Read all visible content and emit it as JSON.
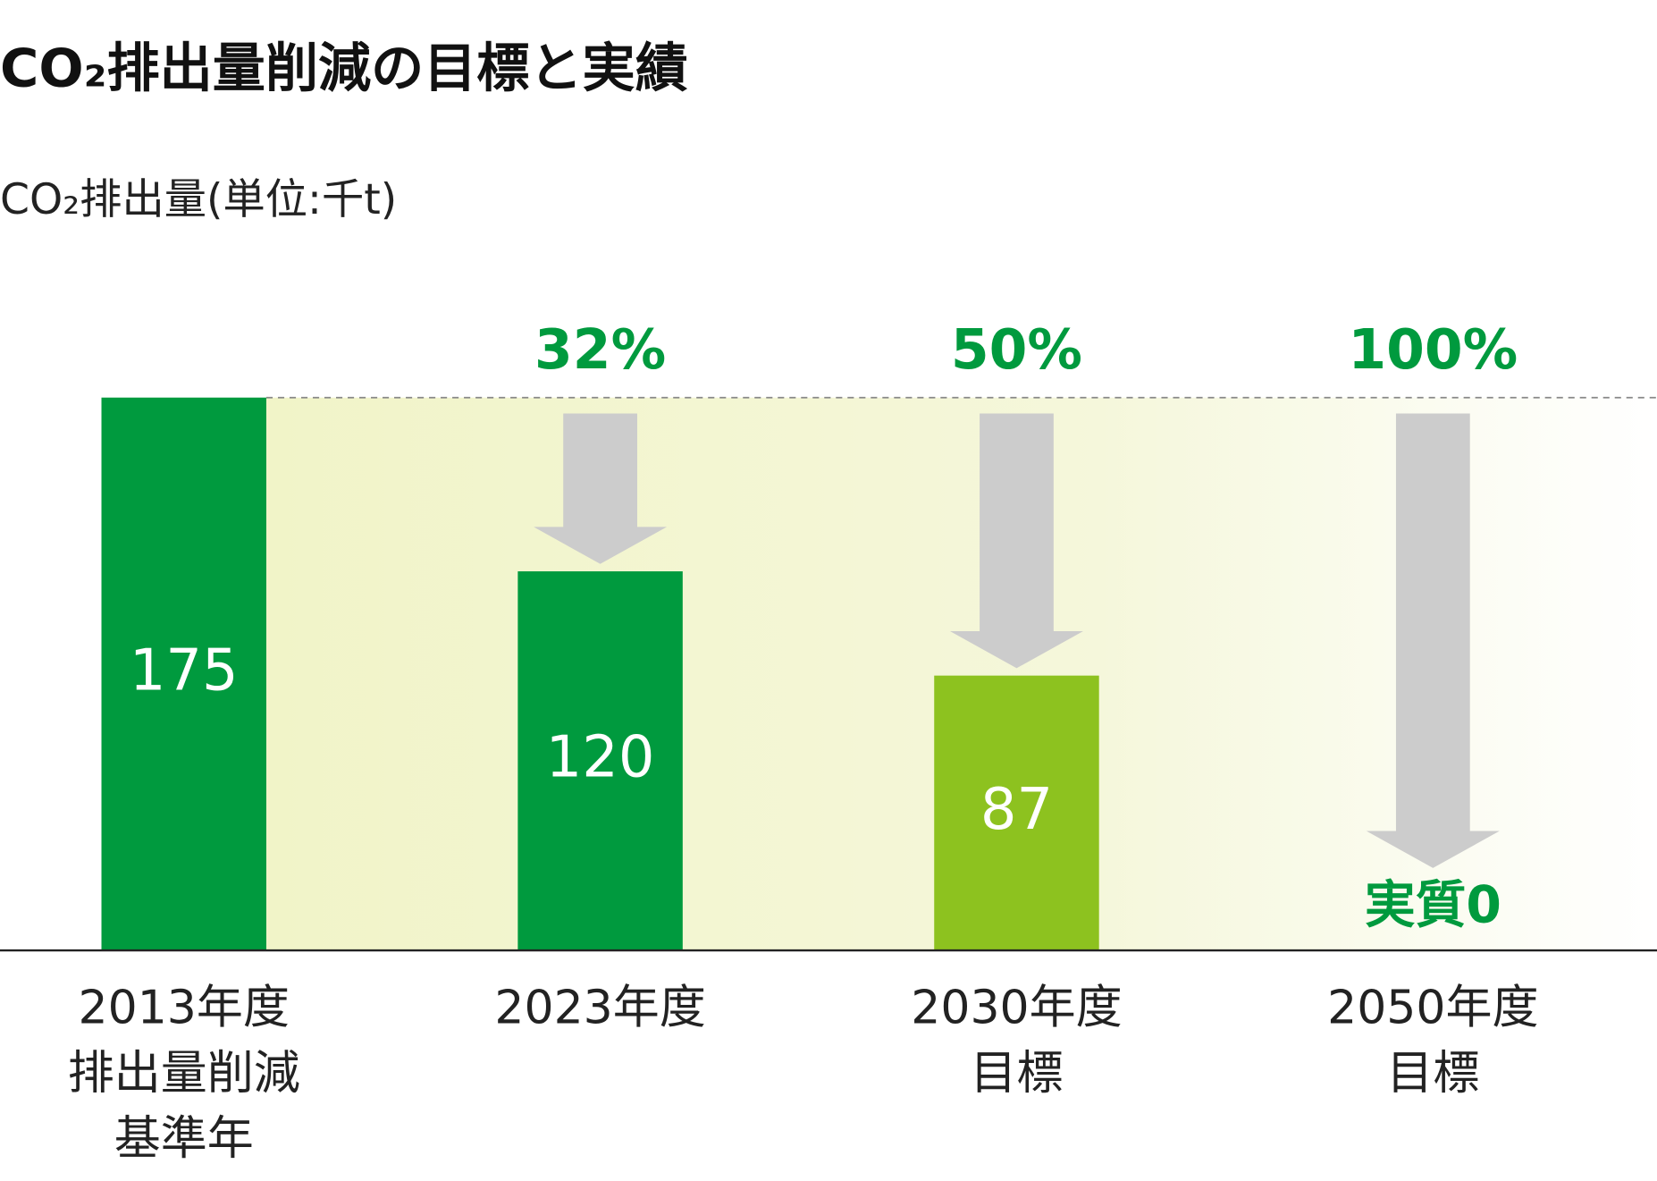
{
  "chart_data": {
    "type": "bar",
    "title": "CO₂排出量削減の目標と実績",
    "subtitle": "CO₂排出量(単位:千t)",
    "categories": [
      [
        "2013年度",
        "排出量削減",
        "基準年"
      ],
      [
        "2023年度"
      ],
      [
        "2030年度",
        "目標"
      ],
      [
        "2050年度",
        "目標"
      ]
    ],
    "values": [
      175,
      120,
      87,
      0
    ],
    "value_labels": [
      "175",
      "120",
      "87",
      "実質0"
    ],
    "reduction_labels": [
      null,
      "32%",
      "50%",
      "100%"
    ],
    "colors": [
      "#009a3e",
      "#009a3e",
      "#8dc21f",
      "#009a3e"
    ],
    "ylim": [
      0,
      175
    ]
  }
}
